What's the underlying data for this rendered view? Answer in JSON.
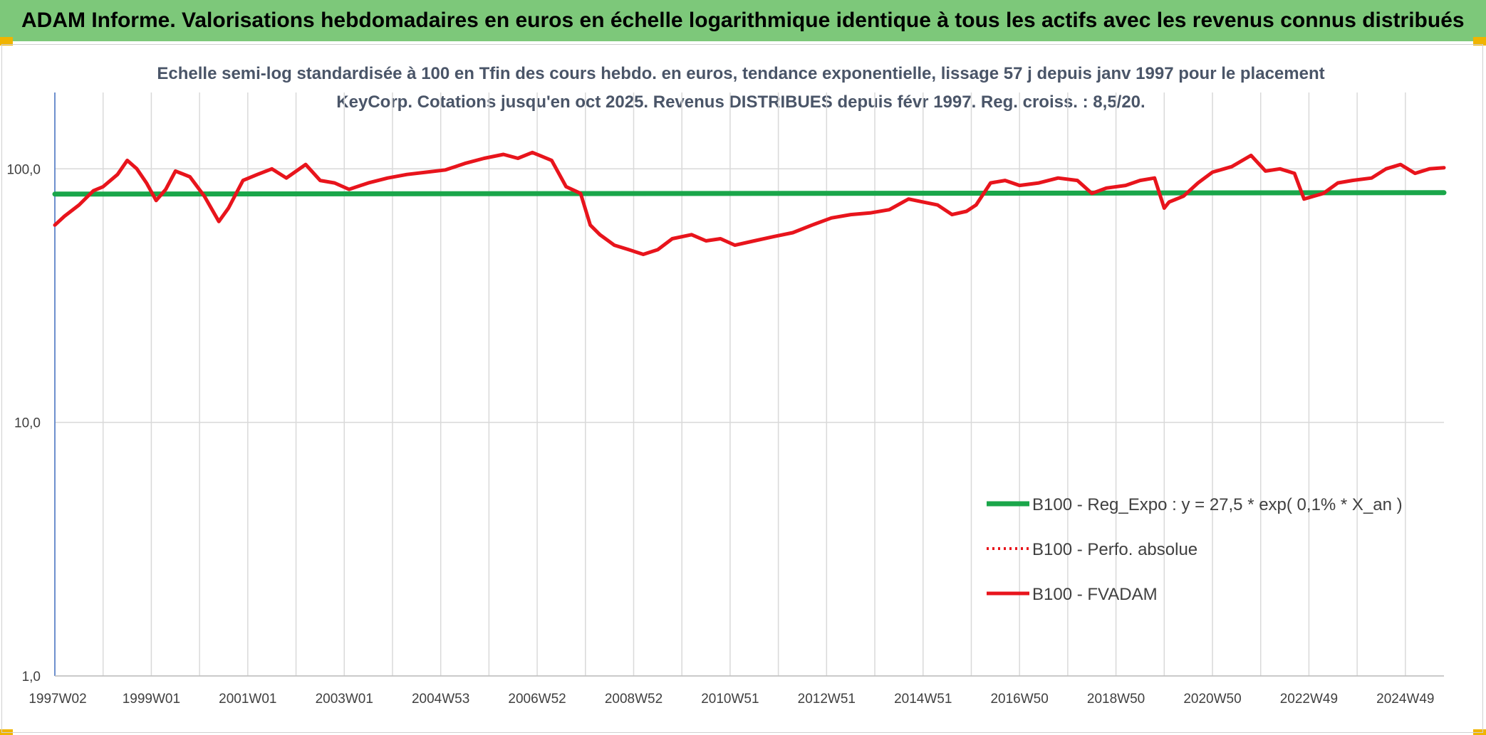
{
  "header": {
    "title": "ADAM Informe. Valorisations hebdomadaires en euros en échelle logarithmique identique à tous les actifs avec les revenus connus distribués"
  },
  "colors": {
    "banner": "#7dc87a",
    "regression": "#1aa64a",
    "fvadam": "#e8141c",
    "grid": "#d9d9d9"
  },
  "chart_data": {
    "type": "line",
    "title": "Echelle semi-log standardisée à 100 en Tfin des cours hebdo. en euros, tendance exponentielle, lissage 57 j depuis janv 1997 pour le placement KeyCorp. Cotations jusqu'en oct 2025. Revenus DISTRIBUES depuis févr 1997. Reg. croiss. : 8,5/20.",
    "y_scale": "log",
    "ylim": [
      1,
      200
    ],
    "y_ticks": [
      "1,0",
      "10,0",
      "100,0"
    ],
    "y_tick_values": [
      1,
      10,
      100
    ],
    "xlim": [
      1997.0,
      2025.8
    ],
    "x_ticks": [
      "1997W02",
      "1999W01",
      "2001W01",
      "2003W01",
      "2004W53",
      "2006W52",
      "2008W52",
      "2010W51",
      "2012W51",
      "2014W51",
      "2016W50",
      "2018W50",
      "2020W50",
      "2022W49",
      "2024W49"
    ],
    "x_tick_values": [
      1997.0,
      1999.0,
      2001.0,
      2003.0,
      2005.0,
      2007.0,
      2009.0,
      2011.0,
      2013.0,
      2015.0,
      2017.0,
      2019.0,
      2021.0,
      2023.0,
      2025.0
    ],
    "grid": "vertical",
    "legend_position": "bottom-right",
    "series": [
      {
        "name": "B100 - Reg_Expo : y = 27,5 * exp( 0,1% *  X_an )",
        "style": "solid",
        "color": "#1aa64a",
        "x": [
          1997.0,
          2025.8
        ],
        "y": [
          79.5,
          80.5
        ]
      },
      {
        "name": "B100 - Perfo. absolue",
        "style": "dotted",
        "color": "#e8141c",
        "x": [],
        "y": []
      },
      {
        "name": "B100 - FVADAM",
        "style": "solid",
        "color": "#e8141c",
        "x": [
          1997.0,
          1997.2,
          1997.5,
          1997.8,
          1998.0,
          1998.3,
          1998.5,
          1998.7,
          1998.9,
          1999.1,
          1999.3,
          1999.5,
          1999.8,
          2000.1,
          2000.4,
          2000.6,
          2000.9,
          2001.2,
          2001.5,
          2001.8,
          2002.2,
          2002.5,
          2002.8,
          2003.1,
          2003.5,
          2003.9,
          2004.3,
          2004.7,
          2005.1,
          2005.5,
          2005.9,
          2006.3,
          2006.6,
          2006.9,
          2007.3,
          2007.6,
          2007.9,
          2008.1,
          2008.3,
          2008.6,
          2008.9,
          2009.2,
          2009.5,
          2009.8,
          2010.2,
          2010.5,
          2010.8,
          2011.1,
          2011.5,
          2011.9,
          2012.3,
          2012.7,
          2013.1,
          2013.5,
          2013.9,
          2014.3,
          2014.7,
          2015.0,
          2015.3,
          2015.6,
          2015.9,
          2016.1,
          2016.4,
          2016.7,
          2017.0,
          2017.4,
          2017.8,
          2018.2,
          2018.5,
          2018.8,
          2019.2,
          2019.5,
          2019.8,
          2020.0,
          2020.1,
          2020.4,
          2020.7,
          2021.0,
          2021.4,
          2021.8,
          2022.1,
          2022.4,
          2022.7,
          2022.9,
          2023.1,
          2023.3,
          2023.6,
          2023.9,
          2024.3,
          2024.6,
          2024.9,
          2025.2,
          2025.5,
          2025.8
        ],
        "y": [
          60,
          65,
          72,
          82,
          85,
          95,
          108,
          100,
          88,
          75,
          83,
          98,
          93,
          78,
          62,
          70,
          90,
          95,
          100,
          92,
          104,
          90,
          88,
          83,
          88,
          92,
          95,
          97,
          99,
          105,
          110,
          114,
          110,
          116,
          108,
          85,
          80,
          60,
          55,
          50,
          48,
          46,
          48,
          53,
          55,
          52,
          53,
          50,
          52,
          54,
          56,
          60,
          64,
          66,
          67,
          69,
          76,
          74,
          72,
          66,
          68,
          72,
          88,
          90,
          86,
          88,
          92,
          90,
          80,
          84,
          86,
          90,
          92,
          70,
          74,
          78,
          88,
          97,
          102,
          113,
          98,
          100,
          96,
          76,
          78,
          80,
          88,
          90,
          92,
          100,
          104,
          96,
          100,
          101
        ]
      }
    ]
  }
}
